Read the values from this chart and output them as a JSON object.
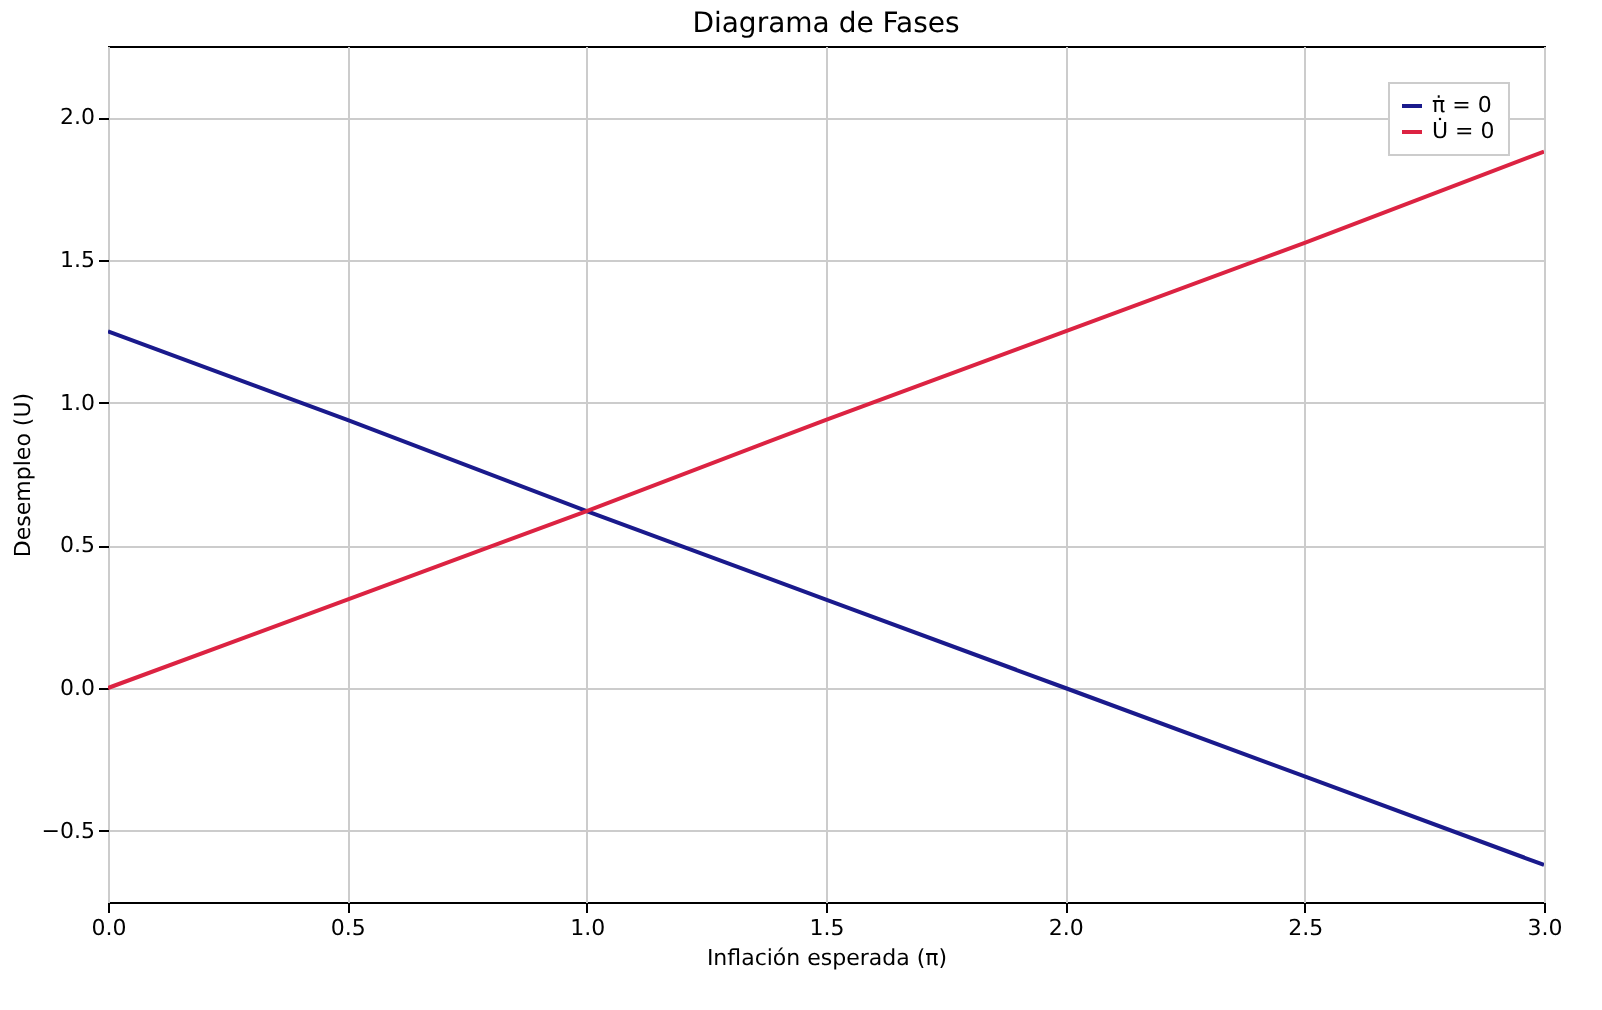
{
  "chart_data": {
    "type": "line",
    "title": "Diagrama de Fases",
    "xlabel": "Inflación esperada (π)",
    "ylabel": "Desempleo (U)",
    "series": [
      {
        "name": "π̇ = 0",
        "color": "#1a1a8c",
        "x": [
          0,
          0.5,
          1,
          1.5,
          2,
          2.5,
          3
        ],
        "values": [
          1.25,
          0.94,
          0.62,
          0.31,
          0,
          -0.31,
          -0.62
        ]
      },
      {
        "name": "U̇ = 0",
        "color": "#dc2342",
        "x": [
          0,
          0.5,
          1,
          1.5,
          2,
          2.5,
          3
        ],
        "values": [
          0,
          0.31,
          0.62,
          0.94,
          1.25,
          1.56,
          1.88
        ]
      }
    ],
    "xlim": [
      0,
      3
    ],
    "ylim": [
      -0.75,
      2.25
    ],
    "xticks": [
      {
        "value": 0,
        "label": "0.0"
      },
      {
        "value": 0.5,
        "label": "0.5"
      },
      {
        "value": 1,
        "label": "1.0"
      },
      {
        "value": 1.5,
        "label": "1.5"
      },
      {
        "value": 2,
        "label": "2.0"
      },
      {
        "value": 2.5,
        "label": "2.5"
      },
      {
        "value": 3,
        "label": "3.0"
      }
    ],
    "yticks": [
      {
        "value": -0.5,
        "label": "−0.5"
      },
      {
        "value": 0,
        "label": "0.0"
      },
      {
        "value": 0.5,
        "label": "0.5"
      },
      {
        "value": 1,
        "label": "1.0"
      },
      {
        "value": 1.5,
        "label": "1.5"
      },
      {
        "value": 2,
        "label": "2.0"
      }
    ],
    "grid": true,
    "legend": "top right",
    "line_style": "solid",
    "marker": "none"
  }
}
